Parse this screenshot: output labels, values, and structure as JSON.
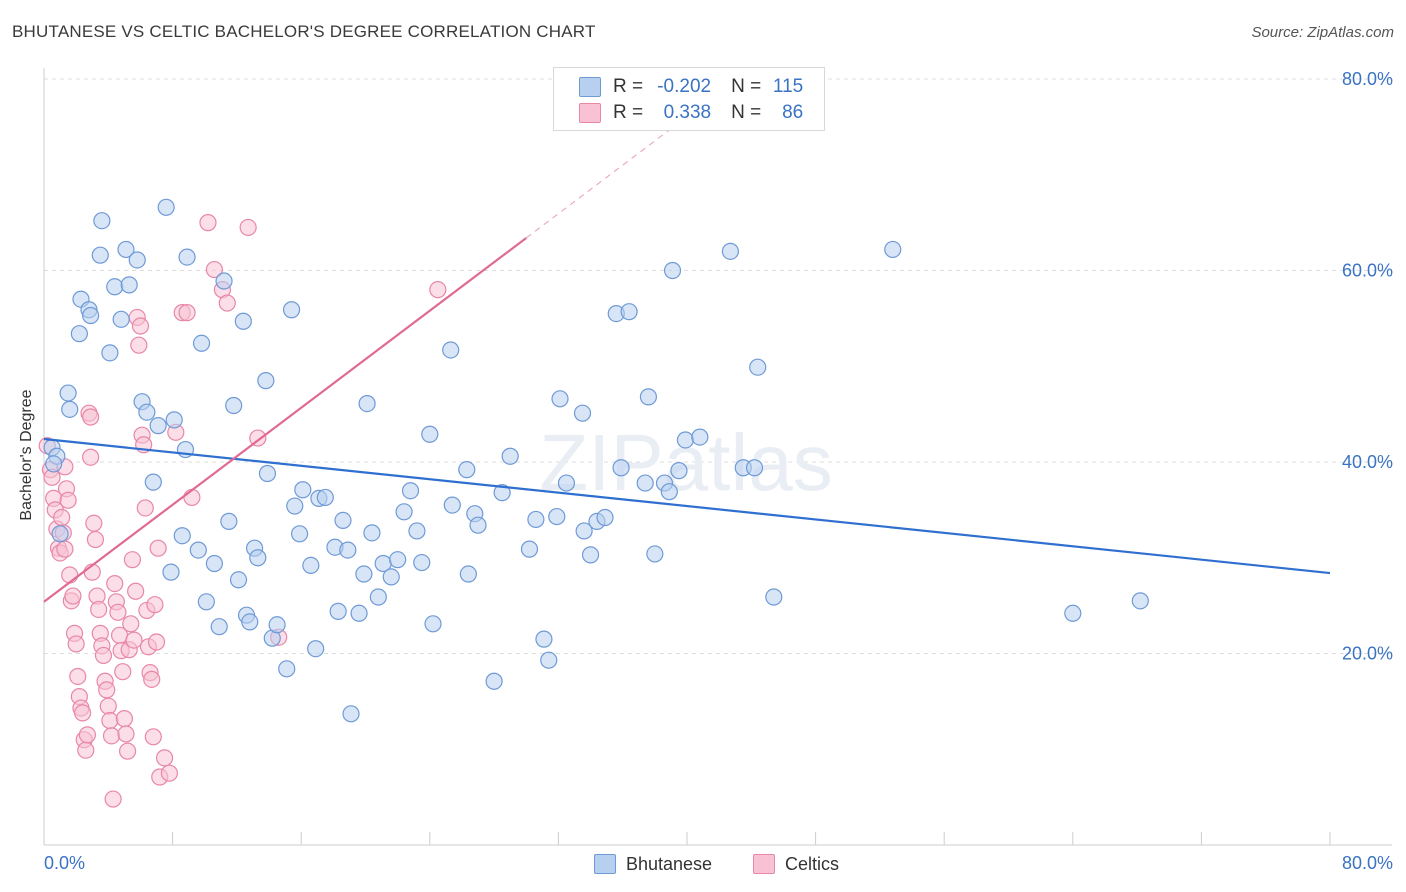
{
  "title": "BHUTANESE VS CELTIC BACHELOR'S DEGREE CORRELATION CHART",
  "source": "Source: ZipAtlas.com",
  "watermark": "ZIPatlas",
  "legend": {
    "rows": [
      {
        "name": "Bhutanese",
        "r_label": "R =",
        "r_value": "-0.202",
        "n_label": "N =",
        "n_value": "115"
      },
      {
        "name": "Celtics",
        "r_label": "R =",
        "r_value": "0.338",
        "n_label": "N =",
        "n_value": "86"
      }
    ]
  },
  "colors": {
    "bhutanese_fill": "#b8d0f0",
    "bhutanese_stroke": "#6f9ad6",
    "bhutanese_line": "#2f6fd0",
    "celtics_fill": "#f8c2d4",
    "celtics_stroke": "#e887a8",
    "celtics_line": "#e06a94",
    "axis_text": "#3a73c4",
    "grid": "#dddddd"
  },
  "chart_data": {
    "type": "scatter",
    "title": "BHUTANESE VS CELTIC BACHELOR'S DEGREE CORRELATION CHART",
    "xlabel": "",
    "ylabel": "Bachelor's Degree",
    "xlim": [
      0,
      80
    ],
    "ylim": [
      0,
      80
    ],
    "x_tick_labels": [
      "0.0%",
      "80.0%"
    ],
    "y_ticks": [
      20,
      40,
      60,
      80
    ],
    "y_tick_labels": [
      "20.0%",
      "40.0%",
      "60.0%",
      "80.0%"
    ],
    "legend_position": "bottom",
    "series": [
      {
        "name": "Bhutanese",
        "r": -0.202,
        "n": 115,
        "trend": {
          "x0": 0,
          "y0": 42.4,
          "x1": 80,
          "y1": 28.4
        },
        "points": [
          [
            0.5,
            41.5
          ],
          [
            0.8,
            40.6
          ],
          [
            0.6,
            39.8
          ],
          [
            1.0,
            32.5
          ],
          [
            1.5,
            47.2
          ],
          [
            1.6,
            45.5
          ],
          [
            2.3,
            57.0
          ],
          [
            2.2,
            53.4
          ],
          [
            2.8,
            55.9
          ],
          [
            2.9,
            55.3
          ],
          [
            3.6,
            65.2
          ],
          [
            3.5,
            61.6
          ],
          [
            4.1,
            51.4
          ],
          [
            4.4,
            58.3
          ],
          [
            4.8,
            54.9
          ],
          [
            5.1,
            62.2
          ],
          [
            5.3,
            58.5
          ],
          [
            5.8,
            61.1
          ],
          [
            6.1,
            46.3
          ],
          [
            6.4,
            45.2
          ],
          [
            6.8,
            37.9
          ],
          [
            7.1,
            43.8
          ],
          [
            7.6,
            66.6
          ],
          [
            7.9,
            28.5
          ],
          [
            8.1,
            44.4
          ],
          [
            8.6,
            32.3
          ],
          [
            8.8,
            41.3
          ],
          [
            8.9,
            61.4
          ],
          [
            9.6,
            30.8
          ],
          [
            9.8,
            52.4
          ],
          [
            10.1,
            25.4
          ],
          [
            10.6,
            29.4
          ],
          [
            10.9,
            22.8
          ],
          [
            11.2,
            58.9
          ],
          [
            11.5,
            33.8
          ],
          [
            11.8,
            45.9
          ],
          [
            12.1,
            27.7
          ],
          [
            12.4,
            54.7
          ],
          [
            12.6,
            24.0
          ],
          [
            12.8,
            23.3
          ],
          [
            13.1,
            31.0
          ],
          [
            13.3,
            30.0
          ],
          [
            13.8,
            48.5
          ],
          [
            13.9,
            38.8
          ],
          [
            14.2,
            21.6
          ],
          [
            14.5,
            23.0
          ],
          [
            15.1,
            18.4
          ],
          [
            15.4,
            55.9
          ],
          [
            15.6,
            35.4
          ],
          [
            15.9,
            32.5
          ],
          [
            16.1,
            37.1
          ],
          [
            16.6,
            29.2
          ],
          [
            16.9,
            20.5
          ],
          [
            17.1,
            36.2
          ],
          [
            17.5,
            36.3
          ],
          [
            18.1,
            31.1
          ],
          [
            18.3,
            24.4
          ],
          [
            18.6,
            33.9
          ],
          [
            18.9,
            30.8
          ],
          [
            19.1,
            13.7
          ],
          [
            19.6,
            24.2
          ],
          [
            19.9,
            28.3
          ],
          [
            20.1,
            46.1
          ],
          [
            20.4,
            32.6
          ],
          [
            20.8,
            25.9
          ],
          [
            21.1,
            29.4
          ],
          [
            21.6,
            28.0
          ],
          [
            22.0,
            29.8
          ],
          [
            22.4,
            34.8
          ],
          [
            22.8,
            37.0
          ],
          [
            23.2,
            32.8
          ],
          [
            23.5,
            29.5
          ],
          [
            24.0,
            42.9
          ],
          [
            24.2,
            23.1
          ],
          [
            25.3,
            51.7
          ],
          [
            25.4,
            35.5
          ],
          [
            26.3,
            39.2
          ],
          [
            26.4,
            28.3
          ],
          [
            26.8,
            34.6
          ],
          [
            27.0,
            33.4
          ],
          [
            28.0,
            17.1
          ],
          [
            28.5,
            36.8
          ],
          [
            29.0,
            40.6
          ],
          [
            30.2,
            30.9
          ],
          [
            30.6,
            34.0
          ],
          [
            31.1,
            21.5
          ],
          [
            31.4,
            19.3
          ],
          [
            31.9,
            34.3
          ],
          [
            32.1,
            46.6
          ],
          [
            32.5,
            37.8
          ],
          [
            33.5,
            45.1
          ],
          [
            33.6,
            32.8
          ],
          [
            34.0,
            30.3
          ],
          [
            34.4,
            33.8
          ],
          [
            34.9,
            34.2
          ],
          [
            35.6,
            55.5
          ],
          [
            35.9,
            39.4
          ],
          [
            36.4,
            55.7
          ],
          [
            37.4,
            37.8
          ],
          [
            37.6,
            46.8
          ],
          [
            38.0,
            30.4
          ],
          [
            38.6,
            37.8
          ],
          [
            38.9,
            36.9
          ],
          [
            39.5,
            39.1
          ],
          [
            39.1,
            60.0
          ],
          [
            39.9,
            42.3
          ],
          [
            40.8,
            42.6
          ],
          [
            42.7,
            62.0
          ],
          [
            43.5,
            39.4
          ],
          [
            44.2,
            39.4
          ],
          [
            44.4,
            49.9
          ],
          [
            45.4,
            25.9
          ],
          [
            52.8,
            62.2
          ],
          [
            64.0,
            24.2
          ],
          [
            68.2,
            25.5
          ]
        ]
      },
      {
        "name": "Celtics",
        "r": 0.338,
        "n": 86,
        "trend": {
          "x0": 0,
          "y0": 25.4,
          "x1": 30,
          "y1": 63.4
        },
        "dashed_extension": {
          "x0": 30,
          "y0": 63.4,
          "x1": 40.5,
          "y1": 76.7
        },
        "points": [
          [
            0.2,
            41.7
          ],
          [
            0.4,
            39.2
          ],
          [
            0.5,
            38.4
          ],
          [
            0.6,
            36.2
          ],
          [
            0.7,
            35.0
          ],
          [
            0.8,
            33.0
          ],
          [
            0.9,
            31.0
          ],
          [
            1.0,
            30.5
          ],
          [
            1.1,
            34.2
          ],
          [
            1.2,
            32.6
          ],
          [
            1.3,
            39.5
          ],
          [
            1.3,
            30.9
          ],
          [
            1.4,
            37.2
          ],
          [
            1.5,
            36.0
          ],
          [
            1.6,
            28.2
          ],
          [
            1.7,
            25.5
          ],
          [
            1.8,
            26.0
          ],
          [
            1.9,
            22.1
          ],
          [
            2.0,
            21.0
          ],
          [
            2.1,
            17.6
          ],
          [
            2.2,
            15.5
          ],
          [
            2.3,
            14.3
          ],
          [
            2.4,
            13.8
          ],
          [
            2.5,
            11.0
          ],
          [
            2.6,
            9.9
          ],
          [
            2.7,
            11.5
          ],
          [
            2.8,
            45.1
          ],
          [
            2.9,
            44.7
          ],
          [
            2.9,
            40.5
          ],
          [
            3.0,
            28.5
          ],
          [
            3.1,
            33.6
          ],
          [
            3.2,
            31.9
          ],
          [
            3.3,
            26.0
          ],
          [
            3.4,
            24.6
          ],
          [
            3.5,
            22.1
          ],
          [
            3.6,
            20.8
          ],
          [
            3.7,
            19.8
          ],
          [
            3.8,
            17.1
          ],
          [
            3.9,
            16.2
          ],
          [
            4.0,
            14.5
          ],
          [
            4.1,
            13.0
          ],
          [
            4.2,
            11.4
          ],
          [
            4.3,
            4.8
          ],
          [
            4.4,
            27.3
          ],
          [
            4.5,
            25.4
          ],
          [
            4.6,
            24.3
          ],
          [
            4.7,
            21.9
          ],
          [
            4.8,
            20.3
          ],
          [
            4.9,
            18.1
          ],
          [
            5.0,
            13.2
          ],
          [
            5.1,
            11.6
          ],
          [
            5.2,
            9.8
          ],
          [
            5.3,
            20.4
          ],
          [
            5.4,
            23.1
          ],
          [
            5.5,
            29.8
          ],
          [
            5.6,
            21.4
          ],
          [
            5.7,
            26.5
          ],
          [
            5.8,
            55.1
          ],
          [
            5.9,
            52.2
          ],
          [
            6.0,
            54.2
          ],
          [
            6.1,
            42.8
          ],
          [
            6.2,
            41.8
          ],
          [
            6.3,
            35.2
          ],
          [
            6.4,
            24.5
          ],
          [
            6.5,
            20.7
          ],
          [
            6.6,
            18.0
          ],
          [
            6.7,
            17.3
          ],
          [
            6.8,
            11.3
          ],
          [
            6.9,
            25.1
          ],
          [
            7.0,
            21.2
          ],
          [
            7.1,
            31.0
          ],
          [
            7.2,
            7.1
          ],
          [
            7.5,
            9.1
          ],
          [
            7.8,
            7.5
          ],
          [
            8.2,
            43.1
          ],
          [
            8.6,
            55.6
          ],
          [
            8.9,
            55.6
          ],
          [
            9.2,
            36.3
          ],
          [
            10.2,
            65.0
          ],
          [
            10.6,
            60.1
          ],
          [
            11.1,
            58.0
          ],
          [
            11.4,
            56.6
          ],
          [
            12.7,
            64.5
          ],
          [
            13.3,
            42.5
          ],
          [
            14.6,
            21.7
          ],
          [
            24.5,
            58.0
          ]
        ]
      }
    ]
  }
}
